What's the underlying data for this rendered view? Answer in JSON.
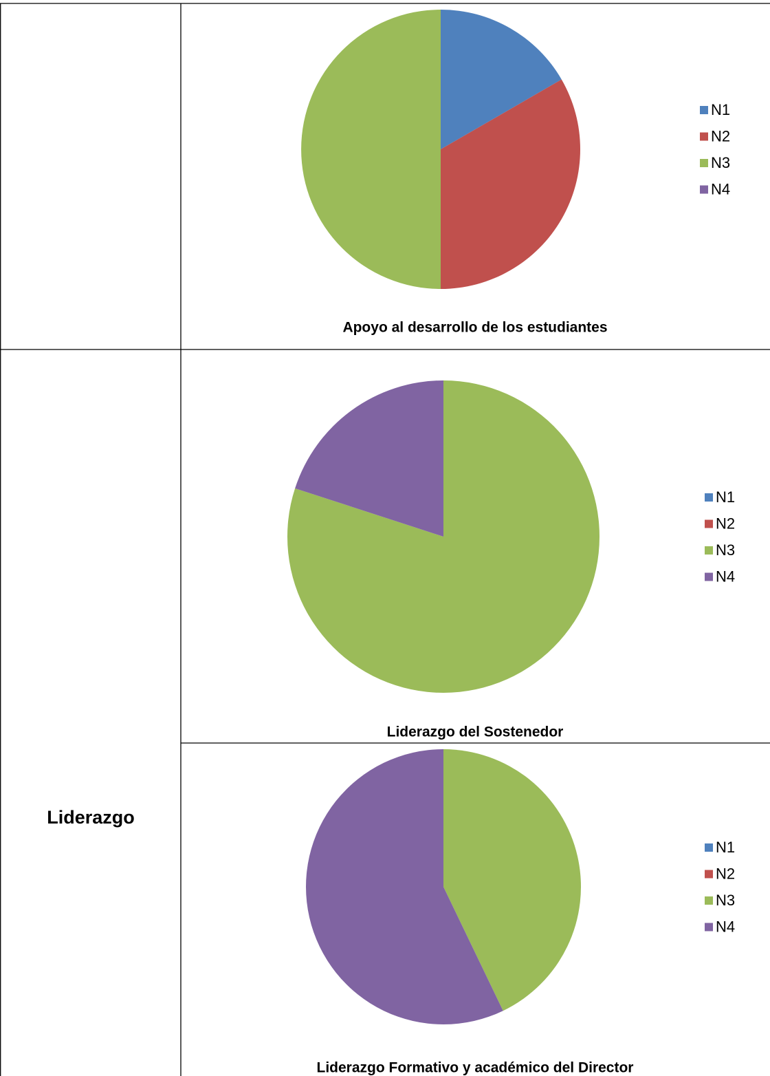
{
  "table": {
    "row_label": "Liderazgo"
  },
  "chart_data": [
    {
      "type": "pie",
      "title": "Apoyo al desarrollo de los estudiantes",
      "categories": [
        "N1",
        "N2",
        "N3",
        "N4"
      ],
      "values": [
        1,
        2,
        3,
        0
      ],
      "colors": [
        "#4f81bd",
        "#c0504d",
        "#9bbb59",
        "#8064a2"
      ],
      "legend": "right"
    },
    {
      "type": "pie",
      "title": "Liderazgo del Sostenedor",
      "categories": [
        "N1",
        "N2",
        "N3",
        "N4"
      ],
      "values": [
        0,
        0,
        4,
        1
      ],
      "colors": [
        "#4f81bd",
        "#c0504d",
        "#9bbb59",
        "#8064a2"
      ],
      "legend": "right"
    },
    {
      "type": "pie",
      "title": "Liderazgo Formativo y académico del Director",
      "categories": [
        "N1",
        "N2",
        "N3",
        "N4"
      ],
      "values": [
        0,
        0,
        3,
        4
      ],
      "colors": [
        "#4f81bd",
        "#c0504d",
        "#9bbb59",
        "#8064a2"
      ],
      "legend": "right"
    }
  ]
}
